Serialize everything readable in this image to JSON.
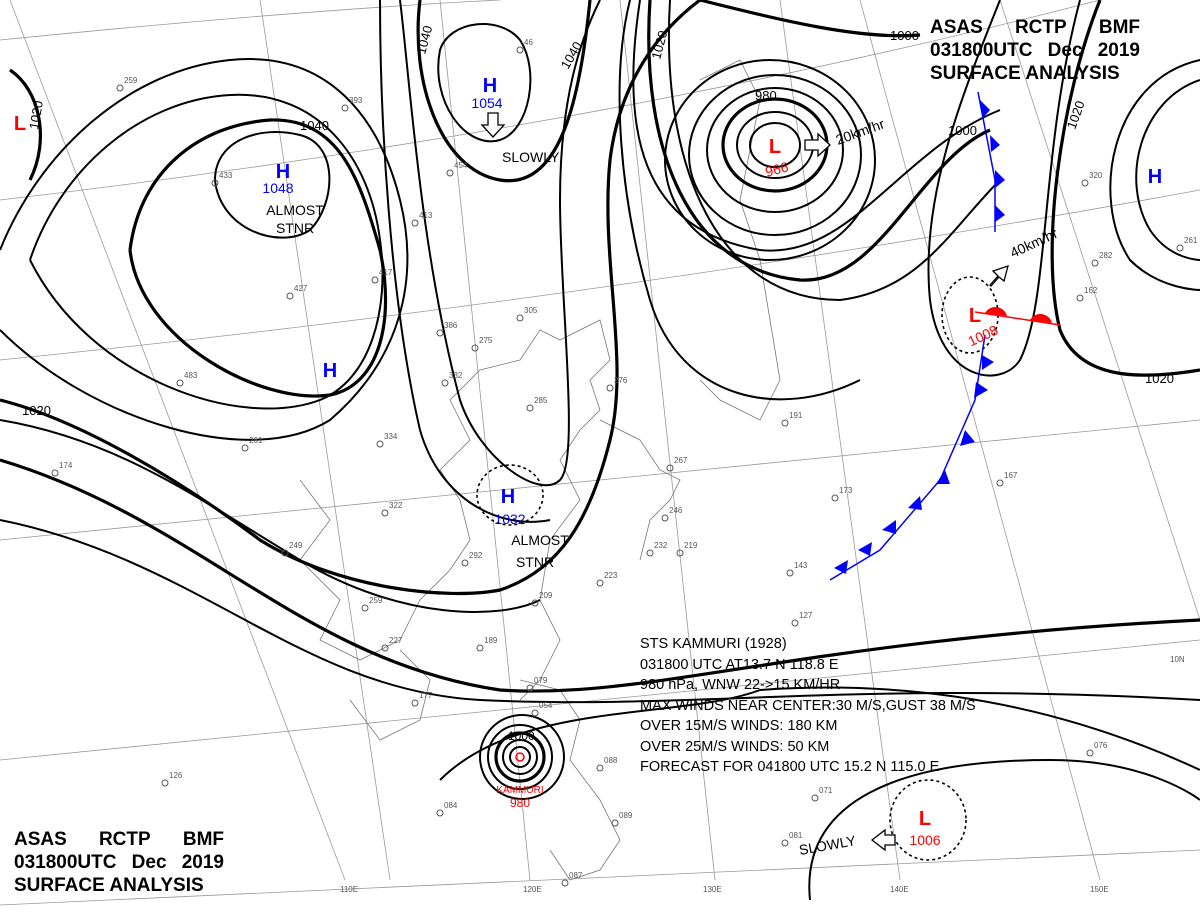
{
  "header_top": {
    "line1": [
      "ASAS",
      "RCTP",
      "BMF"
    ],
    "line2": [
      "031800UTC",
      "Dec",
      "2019"
    ],
    "line3": "SURFACE ANALYSIS"
  },
  "header_bottom": {
    "line1": [
      "ASAS",
      "RCTP",
      "BMF"
    ],
    "line2": [
      "031800UTC",
      "Dec",
      "2019"
    ],
    "line3": "SURFACE ANALYSIS"
  },
  "pressure_centers": [
    {
      "type": "L",
      "value": "",
      "color": "#ff0000"
    },
    {
      "type": "H",
      "value": "1048",
      "color": "#0000ff",
      "note": "ALMOST STNR"
    },
    {
      "type": "H",
      "value": "1054",
      "color": "#0000ff",
      "note": "SLOWLY"
    },
    {
      "type": "H",
      "value": "",
      "color": "#0000ff"
    },
    {
      "type": "H",
      "value": "1032",
      "color": "#0000ff",
      "note": "ALMOST STNR"
    },
    {
      "type": "L",
      "value": "966",
      "color": "#ff0000",
      "note": "20km/hr"
    },
    {
      "type": "L",
      "value": "1008",
      "color": "#ff0000",
      "note": "40km/hr"
    },
    {
      "type": "H",
      "value": "",
      "color": "#0000ff"
    },
    {
      "type": "L",
      "value": "1006",
      "color": "#ff0000",
      "note": "SLOWLY"
    }
  ],
  "notes": {
    "almost_stnr_1": "ALMOST",
    "stnr_1": "STNR",
    "almost_stnr_2": "ALMOST",
    "stnr_2": "STNR",
    "slowly_1": "SLOWLY",
    "slowly_2": "SLOWLY",
    "speed_1": "20km/hr",
    "speed_2": "40km/hr"
  },
  "typhoon": {
    "name": "KAMMURI",
    "pressure": "980",
    "center_isobar": "1000"
  },
  "isobar_labels": [
    "1020",
    "1040",
    "1040",
    "1040",
    "1020",
    "1000",
    "980",
    "1000",
    "1020",
    "1020",
    "1020"
  ],
  "grid_labels": [
    "110E",
    "120E",
    "130E",
    "140E",
    "150E",
    "10N"
  ],
  "storm_info": [
    "STS  KAMMURI  (1928)",
    "031800 UTC  AT13.7 N  118.8 E",
    "980 hPa, WNW  22->15 KM/HR",
    "MAX WINDS NEAR CENTER:30 M/S,GUST 38 M/S",
    "OVER 15M/S WINDS: 180 KM",
    "OVER 25M/S WINDS: 50 KM",
    "FORECAST FOR 041800 UTC 15.2 N  115.0 E"
  ],
  "stations": [
    "259",
    "393",
    "433",
    "413",
    "417",
    "427",
    "483",
    "275",
    "386",
    "332",
    "305",
    "285",
    "334",
    "261",
    "174",
    "322",
    "249",
    "292",
    "259",
    "227",
    "177",
    "189",
    "209",
    "223",
    "219",
    "232",
    "246",
    "267",
    "276",
    "191",
    "173",
    "167",
    "143",
    "127",
    "079",
    "054",
    "088",
    "084",
    "081",
    "089",
    "087",
    "126",
    "076",
    "071",
    "162",
    "320",
    "282",
    "261",
    "454",
    "46"
  ],
  "colors": {
    "high": "#0000ff",
    "low": "#ff0000",
    "cold_front": "#0000ff",
    "warm_front": "#ff0000",
    "isobar": "#000000"
  }
}
